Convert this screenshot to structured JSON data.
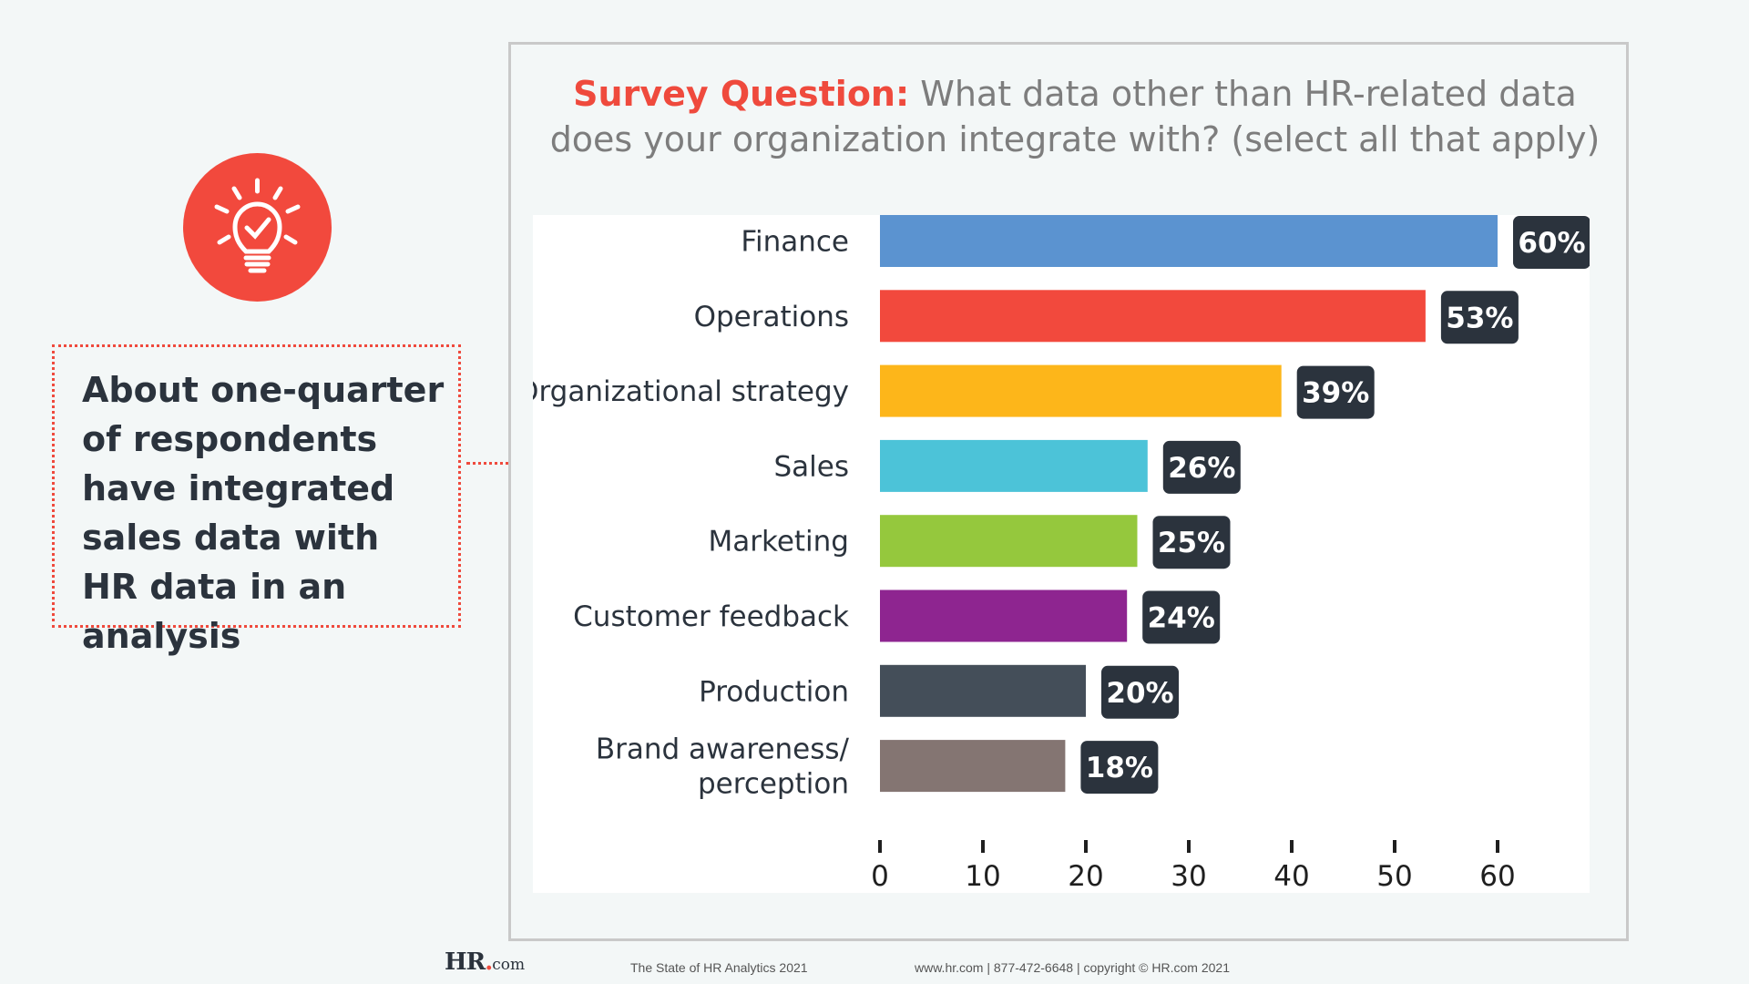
{
  "callout": {
    "text": "About one-quarter of respondents have integrated sales data with HR data in an analysis"
  },
  "question": {
    "label": "Survey Question:",
    "text": " What data other than HR-related data does your organization integrate with? (select all that apply)"
  },
  "footer": {
    "logo_main": "HR",
    "logo_dot": ".",
    "logo_suffix": "com",
    "report_title": "The State of HR Analytics 2021",
    "contact": "www.hr.com | 877-472-6648 | copyright © HR.com 2021"
  },
  "colors": {
    "accent": "#ef4a3d",
    "label_box": "#2b333d"
  },
  "chart_data": {
    "type": "bar",
    "orientation": "horizontal",
    "title": "What data other than HR-related data does your organization integrate with? (select all that apply)",
    "categories": [
      "Finance",
      "Operations",
      "Organizational strategy",
      "Sales",
      "Marketing",
      "Customer feedback",
      "Production",
      "Brand awareness/ perception"
    ],
    "category_lines": [
      [
        "Finance"
      ],
      [
        "Operations"
      ],
      [
        "Organizational strategy"
      ],
      [
        "Sales"
      ],
      [
        "Marketing"
      ],
      [
        "Customer feedback"
      ],
      [
        "Production"
      ],
      [
        "Brand awareness/",
        "perception"
      ]
    ],
    "values": [
      60,
      53,
      39,
      26,
      25,
      24,
      20,
      18
    ],
    "value_labels": [
      "60%",
      "53%",
      "39%",
      "26%",
      "25%",
      "24%",
      "20%",
      "18%"
    ],
    "bar_colors": [
      "#5b93d0",
      "#f2493d",
      "#fdb61a",
      "#4cc3d8",
      "#95c83d",
      "#8e2590",
      "#444e59",
      "#847572"
    ],
    "xlim": [
      0,
      70
    ],
    "xticks": [
      0,
      10,
      20,
      30,
      40,
      50,
      60
    ],
    "xlabel": "",
    "ylabel": "",
    "grid": false
  }
}
